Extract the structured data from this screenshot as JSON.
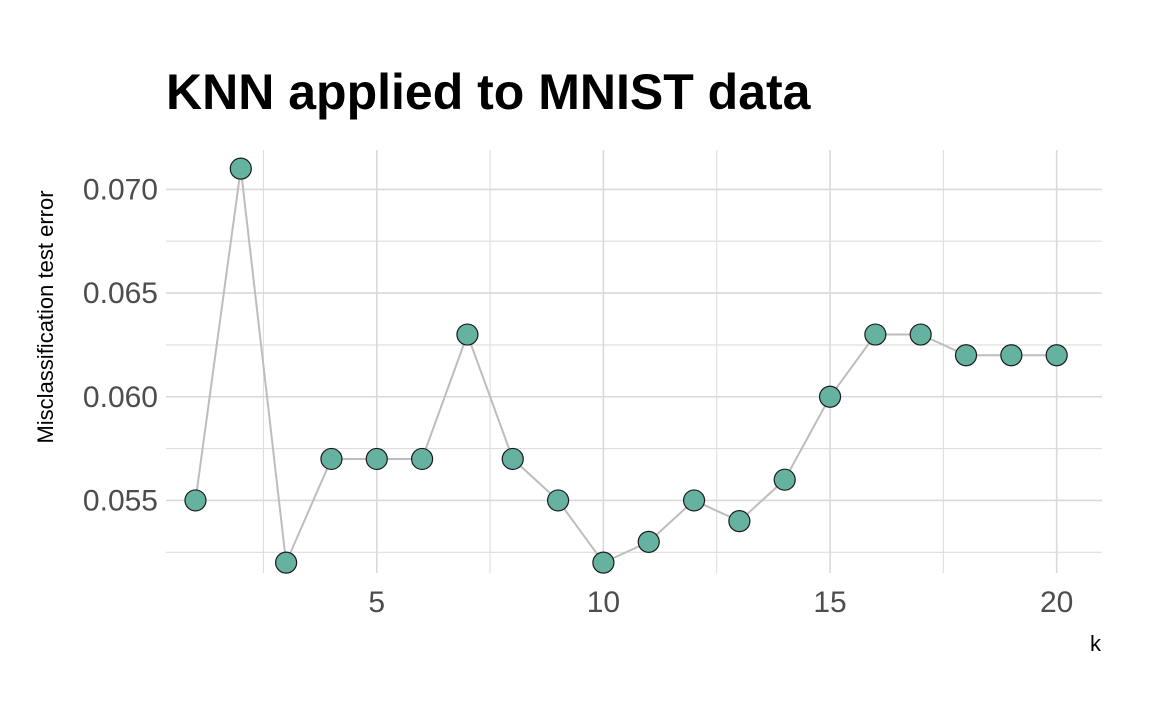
{
  "chart_data": {
    "type": "line",
    "title": "KNN applied to MNIST data",
    "xlabel": "k",
    "ylabel": "Misclassification test error",
    "x": [
      1,
      2,
      3,
      4,
      5,
      6,
      7,
      8,
      9,
      10,
      11,
      12,
      13,
      14,
      15,
      16,
      17,
      18,
      19,
      20
    ],
    "series": [
      {
        "values": [
          0.055,
          0.071,
          0.052,
          0.057,
          0.057,
          0.057,
          0.063,
          0.057,
          0.055,
          0.052,
          0.053,
          0.055,
          0.054,
          0.056,
          0.06,
          0.063,
          0.063,
          0.062,
          0.062,
          0.062
        ]
      }
    ],
    "xlim": [
      0.35,
      21.0
    ],
    "ylim": [
      0.0515,
      0.0719
    ],
    "x_ticks": [
      5,
      10,
      15,
      20
    ],
    "x_tick_labels": [
      "5",
      "10",
      "15",
      "20"
    ],
    "y_ticks": [
      0.055,
      0.06,
      0.065,
      0.07
    ],
    "y_tick_labels": [
      "0.055",
      "0.060",
      "0.065",
      "0.070"
    ],
    "grid": true,
    "legend": "none",
    "colors": {
      "point_fill": "#66b2a0",
      "point_stroke": "#1a1a1a",
      "line": "#bdbdbd",
      "grid": "#d9d9d9"
    }
  }
}
